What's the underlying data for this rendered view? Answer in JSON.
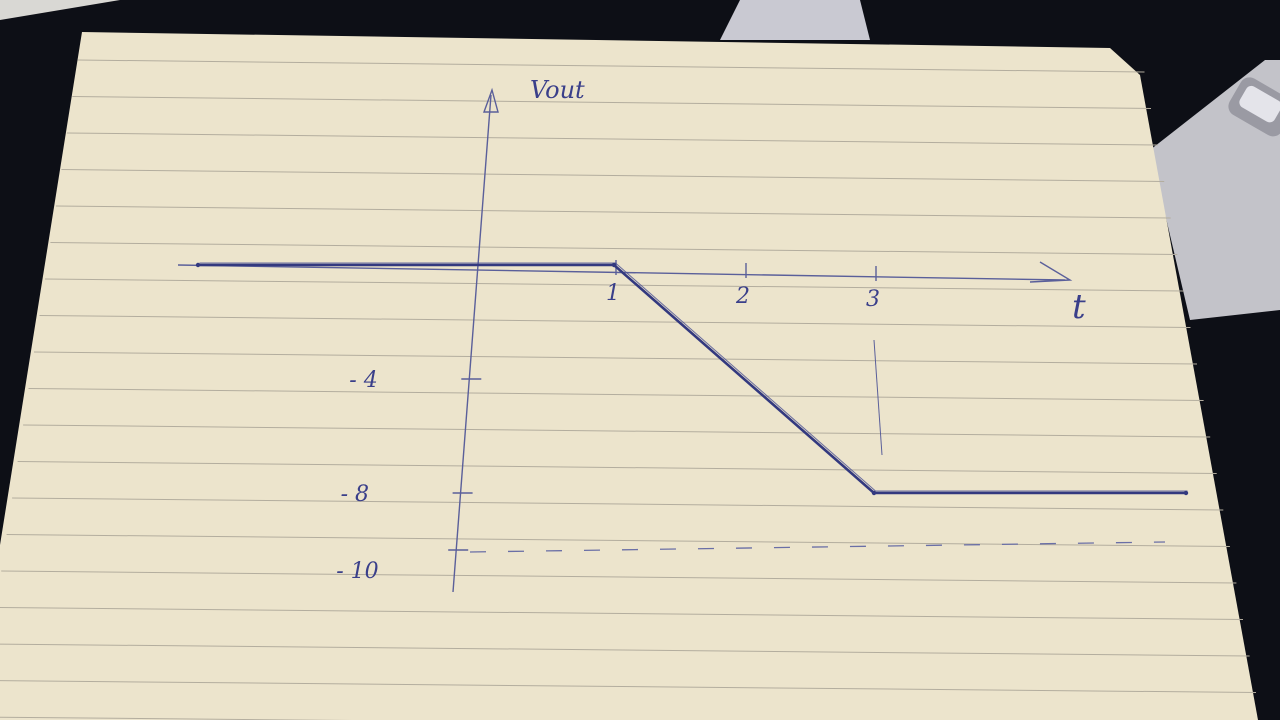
{
  "chart_data": {
    "type": "line",
    "title": "",
    "xlabel": "t",
    "ylabel": "Vout",
    "x_ticks": [
      {
        "value": 1,
        "label": "1"
      },
      {
        "value": 2,
        "label": "2"
      },
      {
        "value": 3,
        "label": "3"
      }
    ],
    "y_ticks": [
      {
        "value": -4,
        "label": "- 4"
      },
      {
        "value": -8,
        "label": "- 8"
      },
      {
        "value": -10,
        "label": "- 10"
      }
    ],
    "series": [
      {
        "values": [
          {
            "x": -2.2,
            "y": 0
          },
          {
            "x": 1,
            "y": 0
          },
          {
            "x": 3,
            "y": -8
          },
          {
            "x": 5.4,
            "y": -8
          }
        ]
      }
    ],
    "reference_lines": [
      {
        "axis": "y",
        "value": -10,
        "style": "dashed"
      },
      {
        "axis": "x",
        "value": 3,
        "style": "vertical guide"
      }
    ],
    "colors": {
      "ink": "#3a3f8a",
      "paper": "#ece4cc",
      "rule": "#b3ad9e",
      "background": "#0d0f16"
    }
  }
}
